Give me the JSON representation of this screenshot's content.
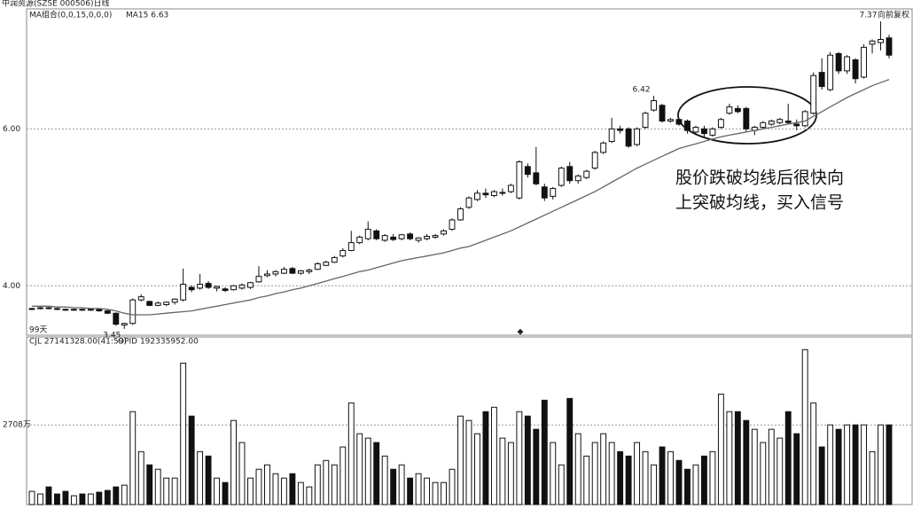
{
  "chart_data": {
    "type": "candlestick",
    "title": "中润资源(SZSE 000506)日线",
    "ma_title": "MA组合(0,0,15,0,0,0)",
    "ma_label": "MA15 6.63",
    "adjust_label": "向前复权",
    "days_label": "99天",
    "volume_title": "CJL 27141328.00(41:59)",
    "volume_extra": "OPID 192335952.00",
    "annotation": [
      "股价跌破均线后很快向",
      "上突破均线，买入信号"
    ],
    "extreme_labels": [
      {
        "value": 6.42,
        "label": "6.42"
      },
      {
        "value": 7.37,
        "label": "7.37"
      },
      {
        "value": 3.45,
        "label": "3.45"
      }
    ],
    "ylim": [
      3.37,
      7.53
    ],
    "yticks": [
      {
        "value": 6,
        "label": "6.00"
      },
      {
        "value": 4,
        "label": "4.00"
      }
    ],
    "grid": true,
    "up_color": "#ffffff",
    "down_color": "#111111",
    "ma_color": "#666666",
    "ohlc": [
      [
        3.7,
        3.72,
        3.69,
        3.71
      ],
      [
        3.71,
        3.73,
        3.7,
        3.72
      ],
      [
        3.72,
        3.73,
        3.7,
        3.71
      ],
      [
        3.71,
        3.72,
        3.69,
        3.7
      ],
      [
        3.7,
        3.71,
        3.68,
        3.69
      ],
      [
        3.69,
        3.71,
        3.68,
        3.7
      ],
      [
        3.7,
        3.71,
        3.68,
        3.69
      ],
      [
        3.69,
        3.71,
        3.68,
        3.7
      ],
      [
        3.7,
        3.71,
        3.67,
        3.68
      ],
      [
        3.68,
        3.69,
        3.64,
        3.65
      ],
      [
        3.65,
        3.66,
        3.49,
        3.51
      ],
      [
        3.5,
        3.53,
        3.45,
        3.52
      ],
      [
        3.52,
        3.84,
        3.5,
        3.82
      ],
      [
        3.82,
        3.89,
        3.8,
        3.86
      ],
      [
        3.8,
        3.81,
        3.74,
        3.75
      ],
      [
        3.75,
        3.8,
        3.74,
        3.78
      ],
      [
        3.76,
        3.8,
        3.74,
        3.79
      ],
      [
        3.79,
        3.84,
        3.76,
        3.83
      ],
      [
        3.82,
        4.22,
        3.8,
        4.02
      ],
      [
        3.98,
        4.0,
        3.92,
        3.95
      ],
      [
        3.97,
        4.15,
        3.95,
        4.02
      ],
      [
        4.03,
        4.06,
        3.96,
        3.98
      ],
      [
        3.97,
        4.0,
        3.93,
        3.99
      ],
      [
        3.96,
        3.98,
        3.92,
        3.94
      ],
      [
        3.95,
        4.01,
        3.94,
        4.0
      ],
      [
        3.97,
        4.03,
        3.95,
        4.01
      ],
      [
        3.98,
        4.05,
        3.96,
        4.04
      ],
      [
        4.05,
        4.25,
        4.04,
        4.12
      ],
      [
        4.13,
        4.2,
        4.11,
        4.15
      ],
      [
        4.15,
        4.2,
        4.12,
        4.18
      ],
      [
        4.16,
        4.24,
        4.15,
        4.21
      ],
      [
        4.22,
        4.24,
        4.15,
        4.16
      ],
      [
        4.16,
        4.2,
        4.14,
        4.19
      ],
      [
        4.18,
        4.22,
        4.15,
        4.2
      ],
      [
        4.21,
        4.3,
        4.2,
        4.28
      ],
      [
        4.26,
        4.32,
        4.25,
        4.3
      ],
      [
        4.3,
        4.38,
        4.29,
        4.36
      ],
      [
        4.38,
        4.48,
        4.36,
        4.45
      ],
      [
        4.45,
        4.7,
        4.44,
        4.55
      ],
      [
        4.55,
        4.64,
        4.53,
        4.62
      ],
      [
        4.6,
        4.82,
        4.58,
        4.72
      ],
      [
        4.7,
        4.72,
        4.58,
        4.6
      ],
      [
        4.58,
        4.66,
        4.56,
        4.64
      ],
      [
        4.62,
        4.66,
        4.57,
        4.59
      ],
      [
        4.6,
        4.66,
        4.58,
        4.65
      ],
      [
        4.66,
        4.68,
        4.58,
        4.6
      ],
      [
        4.58,
        4.62,
        4.55,
        4.61
      ],
      [
        4.6,
        4.66,
        4.58,
        4.63
      ],
      [
        4.62,
        4.66,
        4.6,
        4.64
      ],
      [
        4.66,
        4.72,
        4.64,
        4.7
      ],
      [
        4.72,
        4.86,
        4.7,
        4.84
      ],
      [
        4.84,
        5.0,
        4.83,
        4.98
      ],
      [
        5.0,
        5.14,
        4.98,
        5.12
      ],
      [
        5.1,
        5.22,
        5.08,
        5.18
      ],
      [
        5.18,
        5.24,
        5.12,
        5.16
      ],
      [
        5.15,
        5.22,
        5.13,
        5.2
      ],
      [
        5.18,
        5.24,
        5.15,
        5.19
      ],
      [
        5.2,
        5.3,
        5.18,
        5.28
      ],
      [
        5.12,
        5.6,
        5.1,
        5.58
      ],
      [
        5.52,
        5.56,
        5.38,
        5.42
      ],
      [
        5.44,
        5.77,
        5.28,
        5.3
      ],
      [
        5.26,
        5.3,
        5.08,
        5.12
      ],
      [
        5.14,
        5.26,
        5.1,
        5.24
      ],
      [
        5.28,
        5.52,
        5.26,
        5.5
      ],
      [
        5.52,
        5.58,
        5.3,
        5.34
      ],
      [
        5.34,
        5.42,
        5.3,
        5.4
      ],
      [
        5.38,
        5.48,
        5.36,
        5.46
      ],
      [
        5.5,
        5.72,
        5.48,
        5.7
      ],
      [
        5.7,
        5.84,
        5.68,
        5.82
      ],
      [
        5.84,
        6.14,
        5.82,
        6.0
      ],
      [
        6.0,
        6.04,
        5.94,
        5.98
      ],
      [
        6.0,
        6.02,
        5.76,
        5.78
      ],
      [
        5.8,
        6.02,
        5.78,
        6.0
      ],
      [
        6.02,
        6.22,
        6.0,
        6.2
      ],
      [
        6.24,
        6.42,
        6.22,
        6.36
      ],
      [
        6.3,
        6.32,
        6.08,
        6.1
      ],
      [
        6.1,
        6.14,
        6.08,
        6.12
      ],
      [
        6.12,
        6.14,
        6.04,
        6.06
      ],
      [
        6.1,
        6.12,
        5.94,
        5.98
      ],
      [
        5.96,
        6.04,
        5.92,
        6.02
      ],
      [
        6.0,
        6.04,
        5.9,
        5.94
      ],
      [
        5.92,
        6.02,
        5.9,
        6.0
      ],
      [
        6.02,
        6.14,
        6.0,
        6.12
      ],
      [
        6.2,
        6.32,
        6.18,
        6.28
      ],
      [
        6.26,
        6.3,
        6.2,
        6.22
      ],
      [
        6.26,
        6.28,
        5.96,
        6.0
      ],
      [
        5.98,
        6.04,
        5.92,
        6.02
      ],
      [
        6.02,
        6.1,
        6.0,
        6.08
      ],
      [
        6.06,
        6.12,
        6.04,
        6.1
      ],
      [
        6.08,
        6.14,
        6.06,
        6.12
      ],
      [
        6.1,
        6.32,
        6.06,
        6.08
      ],
      [
        6.06,
        6.12,
        5.98,
        6.04
      ],
      [
        6.04,
        6.24,
        6.02,
        6.22
      ],
      [
        6.2,
        6.72,
        6.18,
        6.68
      ],
      [
        6.72,
        6.9,
        6.5,
        6.54
      ],
      [
        6.5,
        6.98,
        6.48,
        6.94
      ],
      [
        6.96,
        6.98,
        6.7,
        6.74
      ],
      [
        6.74,
        6.94,
        6.7,
        6.92
      ],
      [
        6.88,
        6.9,
        6.58,
        6.64
      ],
      [
        6.66,
        7.08,
        6.64,
        7.04
      ],
      [
        7.08,
        7.14,
        6.96,
        7.12
      ],
      [
        7.1,
        7.37,
        7.0,
        7.14
      ],
      [
        7.16,
        7.2,
        6.9,
        6.94
      ]
    ],
    "ma15": [
      3.74,
      3.74,
      3.74,
      3.73,
      3.73,
      3.72,
      3.72,
      3.71,
      3.71,
      3.7,
      3.68,
      3.65,
      3.63,
      3.63,
      3.63,
      3.64,
      3.65,
      3.66,
      3.67,
      3.68,
      3.7,
      3.72,
      3.74,
      3.76,
      3.78,
      3.8,
      3.82,
      3.85,
      3.87,
      3.9,
      3.92,
      3.95,
      3.97,
      4.0,
      4.03,
      4.06,
      4.09,
      4.12,
      4.15,
      4.18,
      4.2,
      4.23,
      4.26,
      4.29,
      4.32,
      4.34,
      4.36,
      4.38,
      4.4,
      4.42,
      4.45,
      4.48,
      4.5,
      4.54,
      4.58,
      4.62,
      4.66,
      4.7,
      4.75,
      4.8,
      4.85,
      4.9,
      4.95,
      5.0,
      5.05,
      5.1,
      5.15,
      5.2,
      5.26,
      5.32,
      5.38,
      5.44,
      5.5,
      5.55,
      5.6,
      5.65,
      5.7,
      5.75,
      5.78,
      5.81,
      5.84,
      5.87,
      5.9,
      5.92,
      5.94,
      5.96,
      5.98,
      6.0,
      6.02,
      6.04,
      6.06,
      6.08,
      6.1,
      6.16,
      6.22,
      6.28,
      6.34,
      6.4,
      6.45,
      6.5,
      6.55,
      6.59,
      6.63
    ],
    "volume": {
      "ylim": [
        0,
        5400
      ],
      "yticks": [
        {
          "value": 2708,
          "label": "2708万"
        }
      ],
      "values": [
        450,
        360,
        600,
        360,
        450,
        300,
        360,
        360,
        420,
        480,
        600,
        660,
        3160,
        1800,
        1350,
        1200,
        900,
        900,
        4810,
        3010,
        1800,
        1650,
        900,
        750,
        2860,
        2110,
        900,
        1200,
        1350,
        1050,
        900,
        1050,
        750,
        600,
        1350,
        1500,
        1350,
        1960,
        3460,
        2410,
        2260,
        2110,
        1650,
        1200,
        1350,
        900,
        1050,
        900,
        750,
        750,
        1200,
        3010,
        2860,
        2410,
        3160,
        3310,
        2260,
        2110,
        3160,
        3010,
        2560,
        3550,
        2110,
        1350,
        3610,
        2410,
        1650,
        2110,
        2410,
        2110,
        1800,
        1650,
        2110,
        1800,
        1350,
        1960,
        1800,
        1500,
        1200,
        1350,
        1650,
        1800,
        3760,
        3160,
        3160,
        2860,
        2560,
        2110,
        2560,
        2260,
        3160,
        2410,
        5270,
        3460,
        1960,
        2710,
        2560,
        2710,
        2710,
        2710,
        1800,
        2710,
        2710
      ]
    }
  }
}
